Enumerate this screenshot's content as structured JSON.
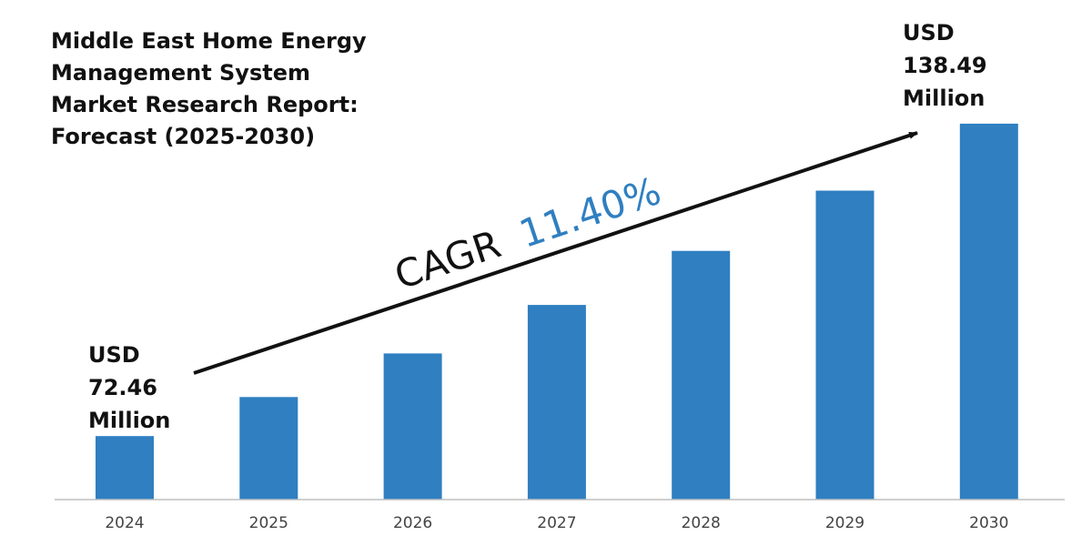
{
  "title_lines": [
    "Middle East Home Energy",
    "Management System",
    "Market Research Report:",
    "Forecast (2025-2030)"
  ],
  "start_value": {
    "currency": "USD",
    "amount": "72.46",
    "unit": "Million"
  },
  "end_value": {
    "currency": "USD",
    "amount": "138.49",
    "unit": "Million"
  },
  "cagr": {
    "label": "CAGR",
    "value": "11.40%"
  },
  "colors": {
    "bar": "#2f7fc1",
    "cagr_value": "#2f7fc1",
    "axis": "#bfbfbf",
    "arrow": "#111111"
  },
  "chart_data": {
    "type": "bar",
    "title": "Middle East Home Energy Management System Market Research Report: Forecast (2025-2030)",
    "xlabel": "",
    "ylabel": "",
    "categories": [
      "2024",
      "2025",
      "2026",
      "2027",
      "2028",
      "2029",
      "2030"
    ],
    "values": [
      72.46,
      80.72,
      89.93,
      100.18,
      111.6,
      124.32,
      138.49
    ],
    "unit": "USD Million",
    "ylim": [
      60,
      140
    ],
    "grid": false,
    "legend": "none",
    "annotations": [
      "CAGR 11.40%",
      "USD 72.46 Million",
      "USD 138.49 Million"
    ]
  }
}
